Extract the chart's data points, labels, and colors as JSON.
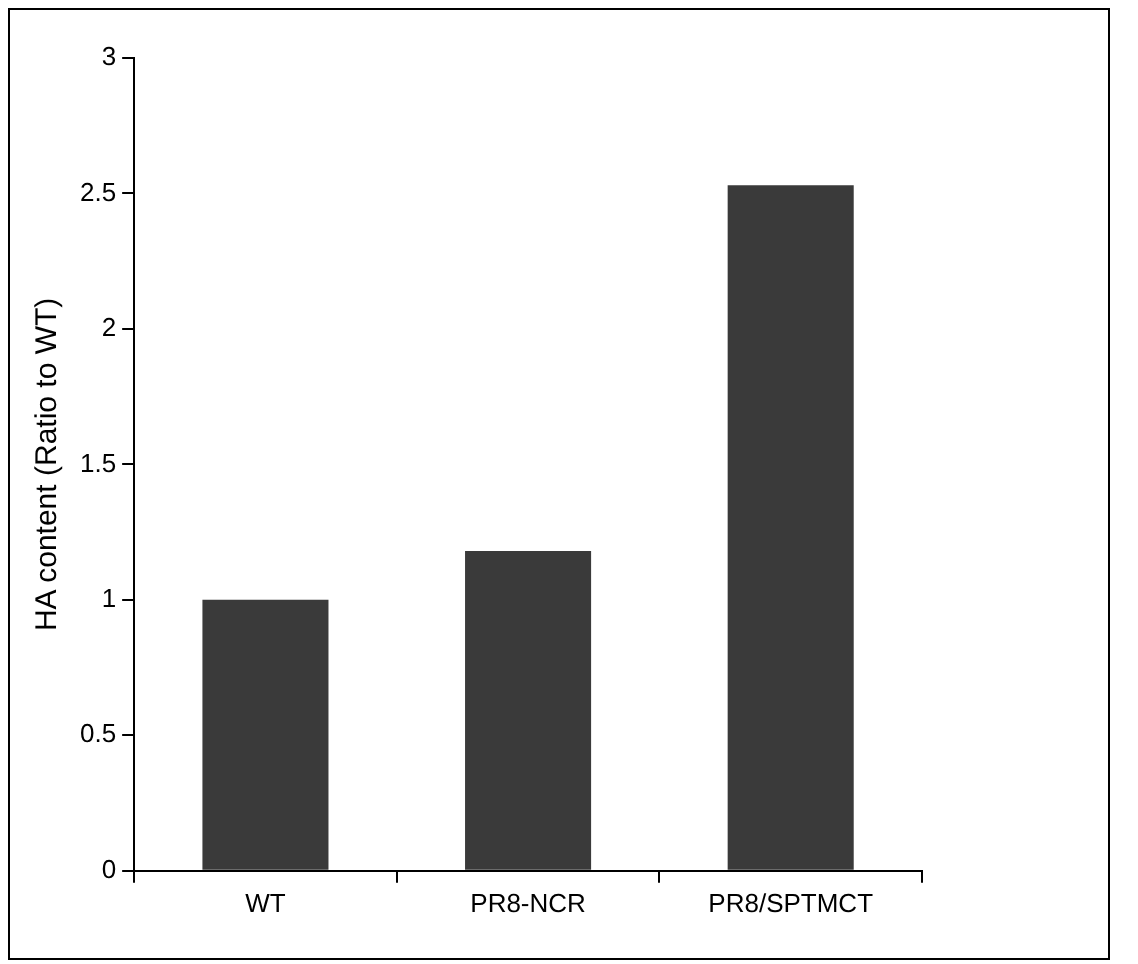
{
  "chart_data": {
    "type": "bar",
    "ylabel": "HA content (Ratio to WT)",
    "categories": [
      "WT",
      "PR8-NCR",
      "PR8/SPTMCT"
    ],
    "values": [
      1.0,
      1.18,
      2.53
    ],
    "color": "#3a3a3a",
    "ylim": [
      0,
      3
    ],
    "yticks": [
      0,
      0.5,
      1,
      1.5,
      2,
      2.5,
      3
    ],
    "grid": false,
    "legend": false
  }
}
